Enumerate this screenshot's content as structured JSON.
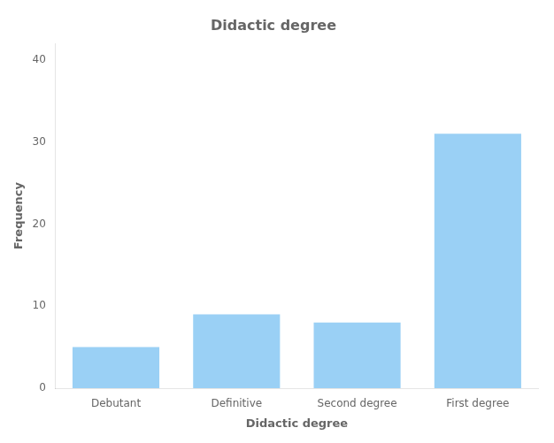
{
  "chart_data": {
    "type": "bar",
    "title": "Didactic degree",
    "xlabel": "Didactic degree",
    "ylabel": "Frequency",
    "categories": [
      "Debutant",
      "Definitive",
      "Second degree",
      "First degree"
    ],
    "values": [
      5,
      9,
      8,
      31
    ],
    "ylim": [
      0,
      42
    ],
    "yticks": [
      0,
      10,
      20,
      30,
      40
    ],
    "grid": false
  }
}
